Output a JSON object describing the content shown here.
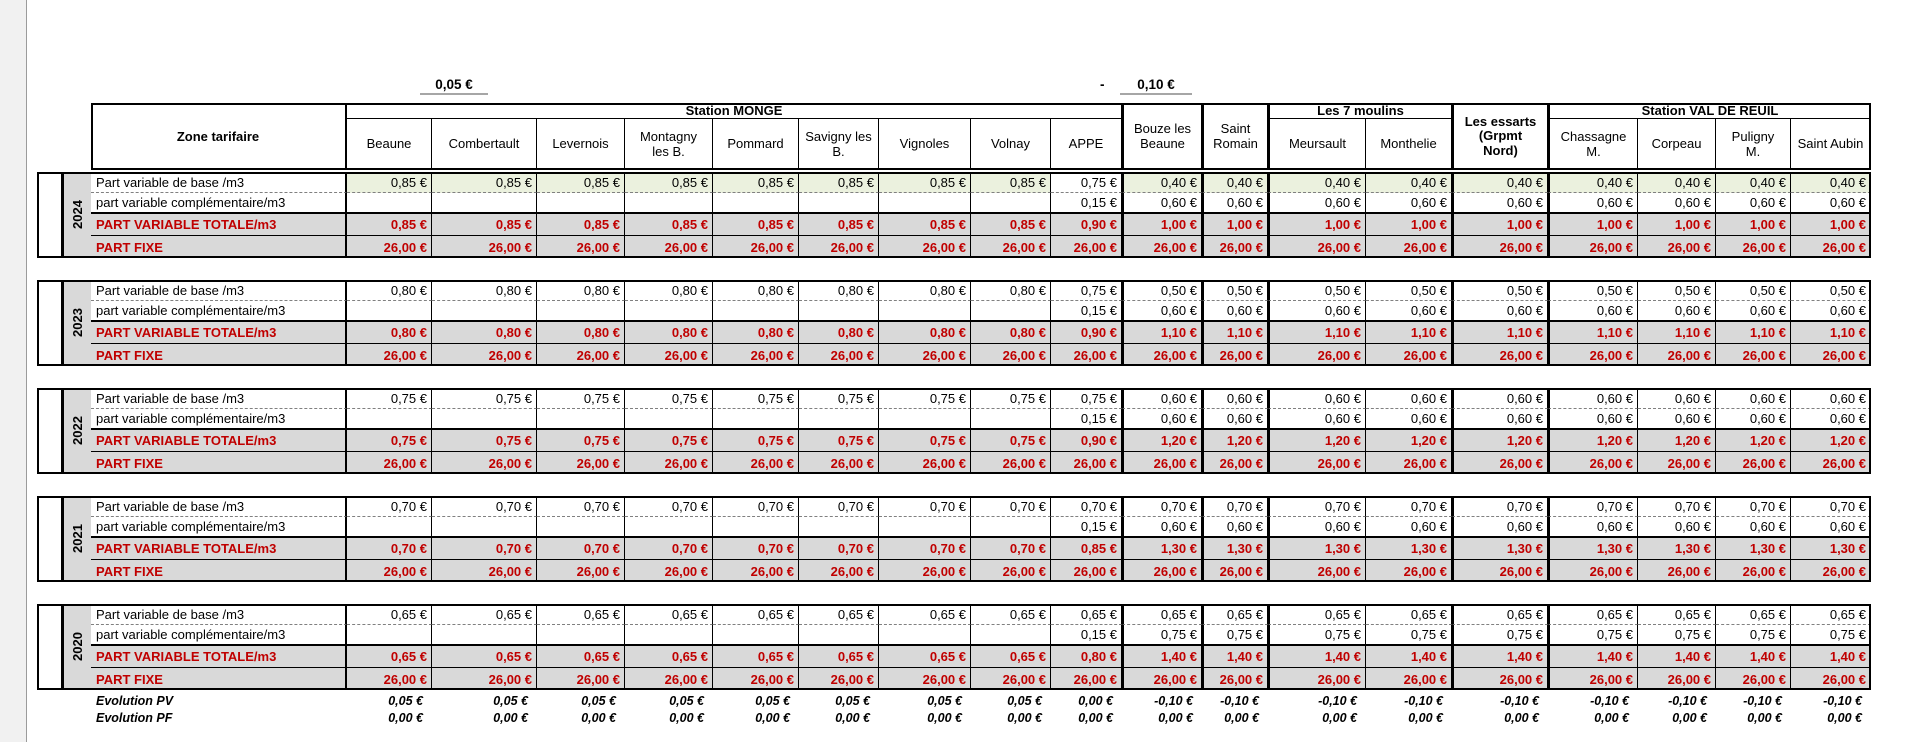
{
  "sheet": {
    "annotations": {
      "left": "0,05 €",
      "right_sign": "-",
      "right": "0,10 €"
    },
    "header": {
      "zone_label": "Zone tarifaire",
      "groups": [
        {
          "label": "Station MONGE",
          "start": 0,
          "span": 9
        },
        {
          "label": "Les 7 moulins",
          "start": 11,
          "span": 2
        },
        {
          "label": "Station VAL DE REUIL",
          "start": 14,
          "span": 4
        }
      ],
      "columns": [
        {
          "name": "Beaune"
        },
        {
          "name": "Combertault"
        },
        {
          "name": "Levernois"
        },
        {
          "name": "Montagny\nles B."
        },
        {
          "name": "Pommard"
        },
        {
          "name": "Savigny les\nB."
        },
        {
          "name": "Vignoles"
        },
        {
          "name": "Volnay"
        },
        {
          "name": "APPE"
        },
        {
          "name": "Bouze les\nBeaune",
          "merged": true
        },
        {
          "name": "Saint\nRomain",
          "merged": true
        },
        {
          "name": "Meursault"
        },
        {
          "name": "Monthelie"
        },
        {
          "name": "Les essarts\n(Grpmt\nNord)",
          "merged": true,
          "bold": true
        },
        {
          "name": "Chassagne\nM."
        },
        {
          "name": "Corpeau"
        },
        {
          "name": "Puligny\nM."
        },
        {
          "name": "Saint Aubin"
        }
      ]
    },
    "row_labels": {
      "base": "Part variable de base /m3",
      "compl": "part variable complémentaire/m3",
      "totale": "PART VARIABLE TOTALE/m3",
      "fixe": "PART FIXE"
    },
    "years": [
      {
        "year": "2024",
        "base_highlight_cols": [
          0,
          1,
          2,
          3,
          4,
          5,
          6,
          7,
          9,
          10,
          11,
          12,
          13,
          14,
          15,
          16,
          17
        ],
        "base": [
          "0,85 €",
          "0,85 €",
          "0,85 €",
          "0,85 €",
          "0,85 €",
          "0,85 €",
          "0,85 €",
          "0,85 €",
          "0,75 €",
          "0,40 €",
          "0,40 €",
          "0,40 €",
          "0,40 €",
          "0,40 €",
          "0,40 €",
          "0,40 €",
          "0,40 €",
          "0,40 €"
        ],
        "compl": [
          "",
          "",
          "",
          "",
          "",
          "",
          "",
          "",
          "0,15 €",
          "0,60 €",
          "0,60 €",
          "0,60 €",
          "0,60 €",
          "0,60 €",
          "0,60 €",
          "0,60 €",
          "0,60 €",
          "0,60 €"
        ],
        "totale": [
          "0,85 €",
          "0,85 €",
          "0,85 €",
          "0,85 €",
          "0,85 €",
          "0,85 €",
          "0,85 €",
          "0,85 €",
          "0,90 €",
          "1,00 €",
          "1,00 €",
          "1,00 €",
          "1,00 €",
          "1,00 €",
          "1,00 €",
          "1,00 €",
          "1,00 €",
          "1,00 €"
        ],
        "fixe": [
          "26,00 €",
          "26,00 €",
          "26,00 €",
          "26,00 €",
          "26,00 €",
          "26,00 €",
          "26,00 €",
          "26,00 €",
          "26,00 €",
          "26,00 €",
          "26,00 €",
          "26,00 €",
          "26,00 €",
          "26,00 €",
          "26,00 €",
          "26,00 €",
          "26,00 €",
          "26,00 €"
        ]
      },
      {
        "year": "2023",
        "base_highlight_cols": [],
        "base": [
          "0,80 €",
          "0,80 €",
          "0,80 €",
          "0,80 €",
          "0,80 €",
          "0,80 €",
          "0,80 €",
          "0,80 €",
          "0,75 €",
          "0,50 €",
          "0,50 €",
          "0,50 €",
          "0,50 €",
          "0,50 €",
          "0,50 €",
          "0,50 €",
          "0,50 €",
          "0,50 €"
        ],
        "compl": [
          "",
          "",
          "",
          "",
          "",
          "",
          "",
          "",
          "0,15 €",
          "0,60 €",
          "0,60 €",
          "0,60 €",
          "0,60 €",
          "0,60 €",
          "0,60 €",
          "0,60 €",
          "0,60 €",
          "0,60 €"
        ],
        "totale": [
          "0,80 €",
          "0,80 €",
          "0,80 €",
          "0,80 €",
          "0,80 €",
          "0,80 €",
          "0,80 €",
          "0,80 €",
          "0,90 €",
          "1,10 €",
          "1,10 €",
          "1,10 €",
          "1,10 €",
          "1,10 €",
          "1,10 €",
          "1,10 €",
          "1,10 €",
          "1,10 €"
        ],
        "fixe": [
          "26,00 €",
          "26,00 €",
          "26,00 €",
          "26,00 €",
          "26,00 €",
          "26,00 €",
          "26,00 €",
          "26,00 €",
          "26,00 €",
          "26,00 €",
          "26,00 €",
          "26,00 €",
          "26,00 €",
          "26,00 €",
          "26,00 €",
          "26,00 €",
          "26,00 €",
          "26,00 €"
        ]
      },
      {
        "year": "2022",
        "base_highlight_cols": [],
        "base": [
          "0,75 €",
          "0,75 €",
          "0,75 €",
          "0,75 €",
          "0,75 €",
          "0,75 €",
          "0,75 €",
          "0,75 €",
          "0,75 €",
          "0,60 €",
          "0,60 €",
          "0,60 €",
          "0,60 €",
          "0,60 €",
          "0,60 €",
          "0,60 €",
          "0,60 €",
          "0,60 €"
        ],
        "compl": [
          "",
          "",
          "",
          "",
          "",
          "",
          "",
          "",
          "0,15 €",
          "0,60 €",
          "0,60 €",
          "0,60 €",
          "0,60 €",
          "0,60 €",
          "0,60 €",
          "0,60 €",
          "0,60 €",
          "0,60 €"
        ],
        "totale": [
          "0,75 €",
          "0,75 €",
          "0,75 €",
          "0,75 €",
          "0,75 €",
          "0,75 €",
          "0,75 €",
          "0,75 €",
          "0,90 €",
          "1,20 €",
          "1,20 €",
          "1,20 €",
          "1,20 €",
          "1,20 €",
          "1,20 €",
          "1,20 €",
          "1,20 €",
          "1,20 €"
        ],
        "fixe": [
          "26,00 €",
          "26,00 €",
          "26,00 €",
          "26,00 €",
          "26,00 €",
          "26,00 €",
          "26,00 €",
          "26,00 €",
          "26,00 €",
          "26,00 €",
          "26,00 €",
          "26,00 €",
          "26,00 €",
          "26,00 €",
          "26,00 €",
          "26,00 €",
          "26,00 €",
          "26,00 €"
        ]
      },
      {
        "year": "2021",
        "base_highlight_cols": [],
        "base": [
          "0,70 €",
          "0,70 €",
          "0,70 €",
          "0,70 €",
          "0,70 €",
          "0,70 €",
          "0,70 €",
          "0,70 €",
          "0,70 €",
          "0,70 €",
          "0,70 €",
          "0,70 €",
          "0,70 €",
          "0,70 €",
          "0,70 €",
          "0,70 €",
          "0,70 €",
          "0,70 €"
        ],
        "compl": [
          "",
          "",
          "",
          "",
          "",
          "",
          "",
          "",
          "0,15 €",
          "0,60 €",
          "0,60 €",
          "0,60 €",
          "0,60 €",
          "0,60 €",
          "0,60 €",
          "0,60 €",
          "0,60 €",
          "0,60 €"
        ],
        "totale": [
          "0,70 €",
          "0,70 €",
          "0,70 €",
          "0,70 €",
          "0,70 €",
          "0,70 €",
          "0,70 €",
          "0,70 €",
          "0,85 €",
          "1,30 €",
          "1,30 €",
          "1,30 €",
          "1,30 €",
          "1,30 €",
          "1,30 €",
          "1,30 €",
          "1,30 €",
          "1,30 €"
        ],
        "fixe": [
          "26,00 €",
          "26,00 €",
          "26,00 €",
          "26,00 €",
          "26,00 €",
          "26,00 €",
          "26,00 €",
          "26,00 €",
          "26,00 €",
          "26,00 €",
          "26,00 €",
          "26,00 €",
          "26,00 €",
          "26,00 €",
          "26,00 €",
          "26,00 €",
          "26,00 €",
          "26,00 €"
        ]
      },
      {
        "year": "2020",
        "base_highlight_cols": [],
        "base": [
          "0,65 €",
          "0,65 €",
          "0,65 €",
          "0,65 €",
          "0,65 €",
          "0,65 €",
          "0,65 €",
          "0,65 €",
          "0,65 €",
          "0,65 €",
          "0,65 €",
          "0,65 €",
          "0,65 €",
          "0,65 €",
          "0,65 €",
          "0,65 €",
          "0,65 €",
          "0,65 €"
        ],
        "compl": [
          "",
          "",
          "",
          "",
          "",
          "",
          "",
          "",
          "0,15 €",
          "0,75 €",
          "0,75 €",
          "0,75 €",
          "0,75 €",
          "0,75 €",
          "0,75 €",
          "0,75 €",
          "0,75 €",
          "0,75 €"
        ],
        "totale": [
          "0,65 €",
          "0,65 €",
          "0,65 €",
          "0,65 €",
          "0,65 €",
          "0,65 €",
          "0,65 €",
          "0,65 €",
          "0,80 €",
          "1,40 €",
          "1,40 €",
          "1,40 €",
          "1,40 €",
          "1,40 €",
          "1,40 €",
          "1,40 €",
          "1,40 €",
          "1,40 €"
        ],
        "fixe": [
          "26,00 €",
          "26,00 €",
          "26,00 €",
          "26,00 €",
          "26,00 €",
          "26,00 €",
          "26,00 €",
          "26,00 €",
          "26,00 €",
          "26,00 €",
          "26,00 €",
          "26,00 €",
          "26,00 €",
          "26,00 €",
          "26,00 €",
          "26,00 €",
          "26,00 €",
          "26,00 €"
        ]
      }
    ],
    "evolution": {
      "pv_label": "Evolution PV",
      "pf_label": "Evolution PF",
      "pv": [
        "0,05 €",
        "0,05 €",
        "0,05 €",
        "0,05 €",
        "0,05 €",
        "0,05 €",
        "0,05 €",
        "0,05 €",
        "0,00 €",
        "-0,10 €",
        "-0,10 €",
        "-0,10 €",
        "-0,10 €",
        "-0,10 €",
        "-0,10 €",
        "-0,10 €",
        "-0,10 €",
        "-0,10 €"
      ],
      "pf": [
        "0,00 €",
        "0,00 €",
        "0,00 €",
        "0,00 €",
        "0,00 €",
        "0,00 €",
        "0,00 €",
        "0,00 €",
        "0,00 €",
        "0,00 €",
        "0,00 €",
        "0,00 €",
        "0,00 €",
        "0,00 €",
        "0,00 €",
        "0,00 €",
        "0,00 €",
        "0,00 €"
      ]
    },
    "colors": {
      "accent_red": "#C00000",
      "highlight_green": "#EBF1DE",
      "fill_gray": "#D9D9D9"
    }
  }
}
